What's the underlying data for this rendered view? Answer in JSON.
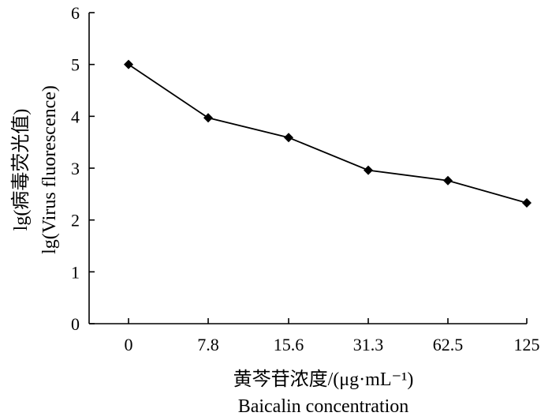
{
  "chart_data": {
    "type": "line",
    "categories": [
      "0",
      "7.8",
      "15.6",
      "31.3",
      "62.5",
      "125"
    ],
    "series": [
      {
        "values": [
          5.0,
          3.97,
          3.59,
          2.96,
          2.76,
          2.33
        ]
      }
    ],
    "ylim": [
      0,
      6
    ],
    "yticks": [
      "0",
      "1",
      "2",
      "3",
      "4",
      "5",
      "6"
    ],
    "xlabel": [
      "黄芩苷浓度/(μg·mL⁻¹)",
      "Baicalin concentration"
    ],
    "ylabel": [
      "lg(病毒荧光值)",
      "lg(Virus fluorescence)"
    ],
    "grid": false,
    "marker": "diamond",
    "line_color": "#000000"
  }
}
